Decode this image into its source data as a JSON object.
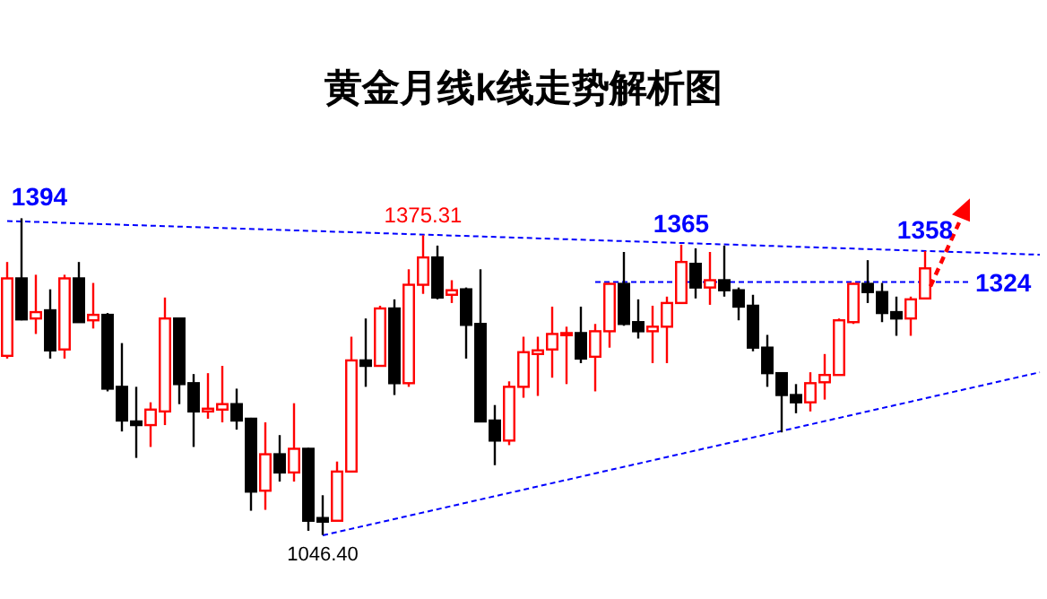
{
  "chart_data": {
    "type": "candlestick",
    "title": "黄金月线k线走势解析图",
    "categories": [
      null,
      null,
      null,
      null,
      null,
      null,
      null,
      null,
      null,
      null,
      null,
      null,
      null,
      null,
      null,
      null,
      null,
      null,
      null,
      null,
      null,
      null,
      null,
      null,
      null,
      null,
      null,
      null,
      null,
      null,
      null,
      null,
      null,
      null,
      null,
      null,
      null,
      null,
      null,
      null,
      null,
      null,
      null,
      null,
      null,
      null,
      null,
      null,
      null,
      null,
      null,
      null,
      null,
      null,
      null,
      null,
      null,
      null,
      null,
      null,
      null,
      null,
      null,
      null,
      null,
      null,
      null,
      null,
      null,
      null,
      null,
      null,
      null
    ],
    "ohlc": [
      [
        1243,
        1346,
        1240,
        1328
      ],
      [
        1328,
        1394,
        1282,
        1283
      ],
      [
        1284,
        1332,
        1267,
        1291
      ],
      [
        1293,
        1316,
        1240,
        1249
      ],
      [
        1250,
        1332,
        1240,
        1328
      ],
      [
        1328,
        1346,
        1280,
        1280
      ],
      [
        1282,
        1323,
        1273,
        1288
      ],
      [
        1288,
        1290,
        1204,
        1207
      ],
      [
        1209,
        1257,
        1160,
        1172
      ],
      [
        1171,
        1209,
        1131,
        1167
      ],
      [
        1167,
        1192,
        1143,
        1184
      ],
      [
        1182,
        1307,
        1167,
        1284
      ],
      [
        1284,
        1285,
        1190,
        1212
      ],
      [
        1213,
        1223,
        1143,
        1182
      ],
      [
        1182,
        1224,
        1174,
        1185
      ],
      [
        1184,
        1232,
        1170,
        1190
      ],
      [
        1190,
        1207,
        1162,
        1172
      ],
      [
        1174,
        1175,
        1073,
        1094
      ],
      [
        1095,
        1170,
        1074,
        1135
      ],
      [
        1135,
        1156,
        1105,
        1115
      ],
      [
        1115,
        1191,
        1105,
        1141
      ],
      [
        1141,
        1142,
        1051,
        1062
      ],
      [
        1065,
        1090,
        1046.4,
        1061
      ],
      [
        1062,
        1127,
        1062,
        1116
      ],
      [
        1116,
        1264,
        1116,
        1238
      ],
      [
        1238,
        1284,
        1209,
        1232
      ],
      [
        1232,
        1298,
        1232,
        1295
      ],
      [
        1295,
        1305,
        1200,
        1213
      ],
      [
        1213,
        1338,
        1209,
        1321
      ],
      [
        1321,
        1375.31,
        1311,
        1351
      ],
      [
        1351,
        1364,
        1305,
        1307
      ],
      [
        1310,
        1326,
        1301,
        1315
      ],
      [
        1316,
        1318,
        1240,
        1277
      ],
      [
        1278,
        1338,
        1171,
        1171
      ],
      [
        1172,
        1189,
        1123,
        1150
      ],
      [
        1150,
        1215,
        1145,
        1209
      ],
      [
        1209,
        1264,
        1197,
        1247
      ],
      [
        1245,
        1264,
        1199,
        1249
      ],
      [
        1250,
        1297,
        1219,
        1267
      ],
      [
        1266,
        1275,
        1212,
        1268
      ],
      [
        1268,
        1297,
        1235,
        1240
      ],
      [
        1242,
        1278,
        1204,
        1270
      ],
      [
        1270,
        1323,
        1252,
        1322
      ],
      [
        1322,
        1357,
        1276,
        1278
      ],
      [
        1280,
        1305,
        1262,
        1270
      ],
      [
        1270,
        1298,
        1235,
        1275
      ],
      [
        1275,
        1308,
        1235,
        1301
      ],
      [
        1301,
        1365,
        1301,
        1346
      ],
      [
        1344,
        1361,
        1306,
        1318
      ],
      [
        1318,
        1357,
        1299,
        1326
      ],
      [
        1326,
        1364,
        1308,
        1315
      ],
      [
        1315,
        1318,
        1282,
        1297
      ],
      [
        1298,
        1310,
        1248,
        1252
      ],
      [
        1252,
        1266,
        1209,
        1224
      ],
      [
        1224,
        1225,
        1159,
        1200
      ],
      [
        1200,
        1212,
        1180,
        1192
      ],
      [
        1192,
        1225,
        1182,
        1213
      ],
      [
        1214,
        1245,
        1195,
        1222
      ],
      [
        1222,
        1284,
        1222,
        1282
      ],
      [
        1280,
        1323,
        1278,
        1322
      ],
      [
        1322,
        1348,
        1301,
        1313
      ],
      [
        1313,
        1323,
        1280,
        1290
      ],
      [
        1291,
        1308,
        1265,
        1284
      ],
      [
        1284,
        1308,
        1265,
        1305
      ],
      [
        1306,
        1358,
        1306,
        1339
      ],
      null,
      null,
      null,
      null,
      null,
      null,
      null,
      null
    ],
    "series": [
      {
        "type": "line",
        "values": [
          1391,
          null,
          null,
          null,
          null,
          null,
          null,
          null,
          null,
          null,
          null,
          null,
          null,
          null,
          null,
          null,
          null,
          null,
          null,
          null,
          null,
          null,
          null,
          null,
          null,
          null,
          null,
          null,
          null,
          null,
          null,
          null,
          null,
          null,
          null,
          null,
          null,
          null,
          null,
          null,
          null,
          null,
          null,
          null,
          null,
          null,
          null,
          null,
          null,
          null,
          null,
          null,
          null,
          null,
          null,
          null,
          null,
          null,
          null,
          null,
          null,
          null,
          null,
          null,
          null,
          null,
          null,
          null,
          null,
          null,
          null,
          null,
          1354
        ],
        "color": "#0000ff",
        "line_style": "dashed"
      },
      {
        "type": "line",
        "values": [
          null,
          null,
          null,
          null,
          null,
          null,
          null,
          null,
          null,
          null,
          null,
          null,
          null,
          null,
          null,
          null,
          null,
          null,
          null,
          null,
          null,
          null,
          1046,
          null,
          null,
          null,
          null,
          null,
          null,
          null,
          null,
          null,
          null,
          null,
          null,
          null,
          null,
          null,
          null,
          null,
          null,
          null,
          null,
          null,
          null,
          null,
          null,
          null,
          null,
          null,
          null,
          null,
          null,
          null,
          null,
          null,
          null,
          null,
          null,
          null,
          null,
          null,
          null,
          null,
          null,
          null,
          null,
          null,
          null,
          null,
          null,
          null,
          1225
        ],
        "color": "#0000ff",
        "line_style": "dashed"
      },
      {
        "type": "line",
        "values": [
          null,
          null,
          null,
          null,
          null,
          null,
          null,
          null,
          null,
          null,
          null,
          null,
          null,
          null,
          null,
          null,
          null,
          null,
          null,
          null,
          null,
          null,
          null,
          null,
          null,
          null,
          null,
          null,
          null,
          null,
          null,
          null,
          null,
          null,
          null,
          null,
          null,
          null,
          null,
          null,
          null,
          1324,
          null,
          null,
          null,
          null,
          null,
          null,
          null,
          null,
          null,
          null,
          null,
          null,
          null,
          null,
          null,
          null,
          null,
          null,
          null,
          null,
          null,
          null,
          null,
          null,
          null,
          1324,
          null,
          null,
          null,
          null,
          null
        ],
        "color": "#0000ff",
        "line_style": "dashed"
      }
    ],
    "annotations": [
      {
        "text": "1394",
        "y": 1394
      },
      {
        "text": "1375.31",
        "y": 1375.31
      },
      {
        "text": "1365",
        "y": 1365
      },
      {
        "text": "1358",
        "y": 1358
      },
      "1324",
      {
        "text": "1046.40",
        "y": 1046.4
      }
    ]
  }
}
